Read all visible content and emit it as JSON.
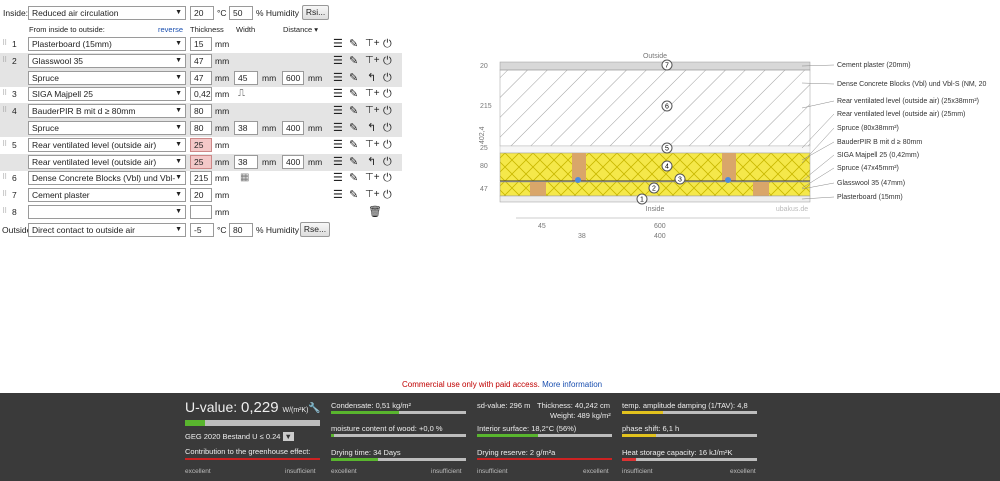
{
  "inside": {
    "label": "Inside:",
    "select": "Reduced air circulation",
    "temp": "20",
    "temp_unit": "°C",
    "humidity": "50",
    "humidity_unit": "% Humidity",
    "button": "Rsi..."
  },
  "headers": {
    "order": "From inside to outside:",
    "reverse": "reverse",
    "thickness": "Thickness",
    "width": "Width",
    "distance": "Distance"
  },
  "rows": [
    {
      "idx": "1",
      "material": "Plasterboard (15mm)",
      "thickness": "15",
      "unit": "mm"
    },
    {
      "idx": "2",
      "material": "Glasswool 35",
      "thickness": "47",
      "unit": "mm"
    },
    {
      "idx": "",
      "material": "Spruce",
      "thickness": "47",
      "unit": "mm",
      "width": "45",
      "distance": "600"
    },
    {
      "idx": "3",
      "material": "SIGA Majpell 25",
      "thickness": "0,42",
      "unit": "mm"
    },
    {
      "idx": "4",
      "material": "BauderPIR B mit d ≥ 80mm",
      "thickness": "80",
      "unit": "mm"
    },
    {
      "idx": "",
      "material": "Spruce",
      "thickness": "80",
      "unit": "mm",
      "width": "38",
      "distance": "400"
    },
    {
      "idx": "5",
      "material": "Rear ventilated level (outside air)",
      "thickness": "25",
      "unit": "mm"
    },
    {
      "idx": "",
      "material": "Rear ventilated level (outside air)",
      "thickness": "25",
      "unit": "mm",
      "width": "38",
      "distance": "400"
    },
    {
      "idx": "6",
      "material": "Dense Concrete Blocks (Vbl) und Vbl-",
      "thickness": "215",
      "unit": "mm"
    },
    {
      "idx": "7",
      "material": "Cement plaster",
      "thickness": "20",
      "unit": "mm"
    },
    {
      "idx": "8",
      "material": "",
      "thickness": "",
      "unit": "mm"
    }
  ],
  "width_unit": "mm",
  "outside": {
    "label": "Outside",
    "select": "Direct contact to outside air",
    "temp": "-5",
    "temp_unit": "°C",
    "humidity": "80",
    "humidity_unit": "% Humidity",
    "button": "Rse..."
  },
  "diagram": {
    "top_label": "Outside",
    "bottom_label": "Inside",
    "watermark": "ubakus.de",
    "dims_left": [
      "20",
      "215",
      "25",
      "80",
      "47"
    ],
    "total": "402,4",
    "dims_bottom": [
      "45",
      "600",
      "38",
      "400"
    ],
    "legend": [
      "Cement plaster (20mm)",
      "Dense Concrete Blocks (Vbl) und Vbl-S (NM, 20",
      "Rear ventilated level (outside air) (25x38mm²)",
      "Rear ventilated level (outside air) (25mm)",
      "Spruce (80x38mm²)",
      "BauderPIR B mit d ≥ 80mm",
      "SIGA Majpell 25 (0,42mm)",
      "Spruce (47x45mm²)",
      "Glasswool 35 (47mm)",
      "Plasterboard (15mm)"
    ],
    "circles": [
      "7",
      "6",
      "5",
      "4",
      "3",
      "2",
      "1"
    ]
  },
  "notice": {
    "text": "Commercial use only with paid access.",
    "link": "More information"
  },
  "results": {
    "uvalue_label": "U-value:",
    "uvalue": "0,229",
    "uvalue_unit": "W/(m²K)",
    "uvalue_frac": 0.15,
    "geg": "GEG 2020 Bestand U ≤ 0.24",
    "greenhouse": "Contribution to the greenhouse effect:",
    "excellent": "excellent",
    "insufficient": "insufficient",
    "condensate": "Condensate: 0,51 kg/m²",
    "condensate_frac": 0.5,
    "moisture": "moisture content of wood: +0,0 %",
    "moisture_frac": 0.02,
    "drying": "Drying time: 34 Days",
    "drying_frac": 0.35,
    "sd": "sd-value: 296 m",
    "thickness": "Thickness: 40,242 cm",
    "weight": "Weight: 489 kg/m²",
    "interior": "Interior surface: 18,2°C (56%)",
    "interior_frac": 0.45,
    "reserve": "Drying reserve: 2 g/m²a",
    "reserve_frac": 0.05,
    "amplitude": "temp. amplitude damping (1/TAV): 4,8",
    "amplitude_frac": 0.3,
    "phase": "phase shift: 6,1 h",
    "phase_frac": 0.25,
    "heat": "Heat storage capacity: 16 kJ/m²K",
    "heat_frac": 0.1
  },
  "colors": {
    "panel": "#3a3a3a",
    "good": "#59b52e",
    "warn": "#f4c8c8",
    "link": "#1a4fb0",
    "notice": "#c00000"
  }
}
